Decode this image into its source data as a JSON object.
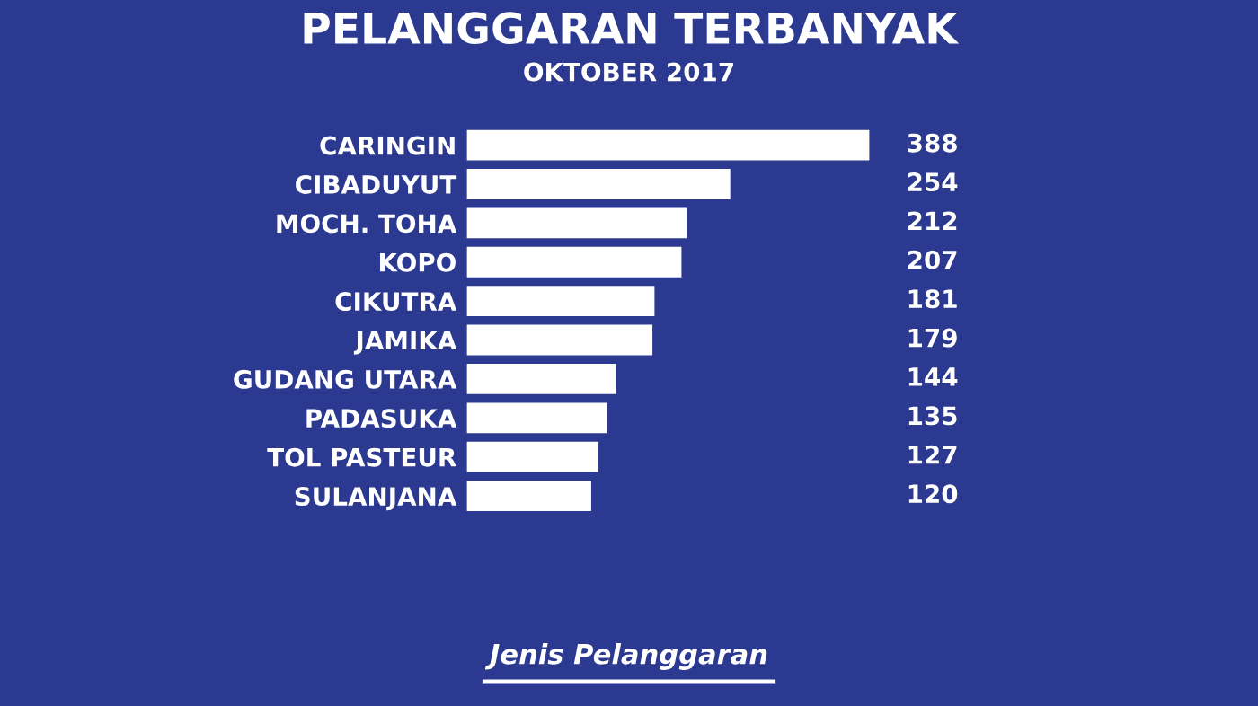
{
  "chart_data": {
    "type": "bar",
    "orientation": "horizontal",
    "title": "PELANGGARAN TERBANYAK",
    "subtitle": "OKTOBER 2017",
    "categories": [
      "CARINGIN",
      "CIBADUYUT",
      "MOCH. TOHA",
      "KOPO",
      "CIKUTRA",
      "JAMIKA",
      "GUDANG UTARA",
      "PADASUKA",
      "TOL PASTEUR",
      "SULANJANA"
    ],
    "values": [
      388,
      254,
      212,
      207,
      181,
      179,
      144,
      135,
      127,
      120
    ],
    "color": "#ffffff",
    "data_labels": true,
    "grid": false,
    "legend": false,
    "annotations": [
      "Jenis Pelanggaran"
    ]
  }
}
